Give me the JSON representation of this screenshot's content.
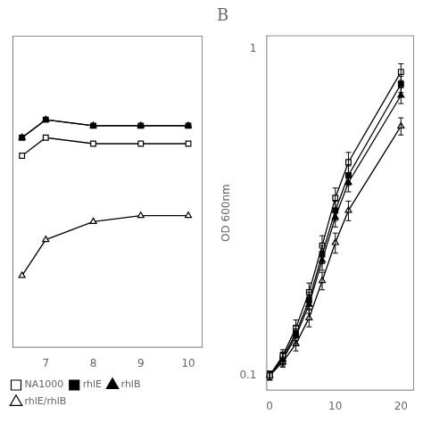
{
  "chart_data": [
    {
      "type": "line",
      "x": [
        6.5,
        7,
        8,
        9,
        10
      ],
      "series": [
        {
          "name": "NA1000",
          "color": "#000000",
          "marker": "square-open",
          "values": [
            0.6,
            0.63,
            0.62,
            0.62,
            0.62
          ]
        },
        {
          "name": "rhlE",
          "color": "#000000",
          "marker": "square",
          "values": [
            0.63,
            0.66,
            0.65,
            0.65,
            0.65
          ]
        },
        {
          "name": "rhlB",
          "color": "#000000",
          "marker": "triangle",
          "values": [
            0.63,
            0.66,
            0.65,
            0.65,
            0.65
          ]
        },
        {
          "name": "rhlE/rhlB",
          "color": "#000000",
          "marker": "triangle-open",
          "values": [
            0.4,
            0.46,
            0.49,
            0.5,
            0.5
          ]
        }
      ],
      "xlim": [
        6.3,
        10.3
      ],
      "xticks": [
        7,
        8,
        9,
        10
      ],
      "ylim": [
        0.28,
        0.8
      ],
      "tick_labels": "x",
      "grid": false,
      "legend": "lower left"
    },
    {
      "type": "line",
      "title": "B",
      "ylabel": "OD 600nm",
      "log": "y",
      "x": [
        0,
        2,
        4,
        6,
        8,
        10,
        12,
        20
      ],
      "series": [
        {
          "name": "NA1000",
          "color": "#000000",
          "marker": "square-open",
          "values": [
            0.1,
            0.115,
            0.14,
            0.18,
            0.25,
            0.35,
            0.45,
            0.85
          ],
          "errors": [
            0.003,
            0.005,
            0.008,
            0.012,
            0.018,
            0.025,
            0.032,
            0.05
          ]
        },
        {
          "name": "rhlE",
          "color": "#000000",
          "marker": "square",
          "values": [
            0.1,
            0.113,
            0.135,
            0.17,
            0.235,
            0.32,
            0.41,
            0.78
          ],
          "errors": [
            0.003,
            0.005,
            0.007,
            0.01,
            0.015,
            0.022,
            0.028,
            0.045
          ]
        },
        {
          "name": "rhlB",
          "color": "#000000",
          "marker": "triangle",
          "values": [
            0.1,
            0.112,
            0.132,
            0.165,
            0.225,
            0.305,
            0.39,
            0.72
          ],
          "errors": [
            0.003,
            0.005,
            0.007,
            0.01,
            0.015,
            0.02,
            0.025,
            0.04
          ]
        },
        {
          "name": "rhlE/rhlB",
          "color": "#000000",
          "marker": "triangle-open",
          "values": [
            0.1,
            0.11,
            0.125,
            0.15,
            0.195,
            0.255,
            0.32,
            0.58
          ],
          "errors": [
            0.003,
            0.004,
            0.006,
            0.009,
            0.012,
            0.018,
            0.022,
            0.035
          ]
        }
      ],
      "xlim": [
        -0.5,
        22
      ],
      "xticks": [
        0,
        10,
        20
      ],
      "ylim": [
        0.09,
        1.1
      ],
      "yticks": [
        0.1,
        1
      ],
      "grid": false
    }
  ]
}
